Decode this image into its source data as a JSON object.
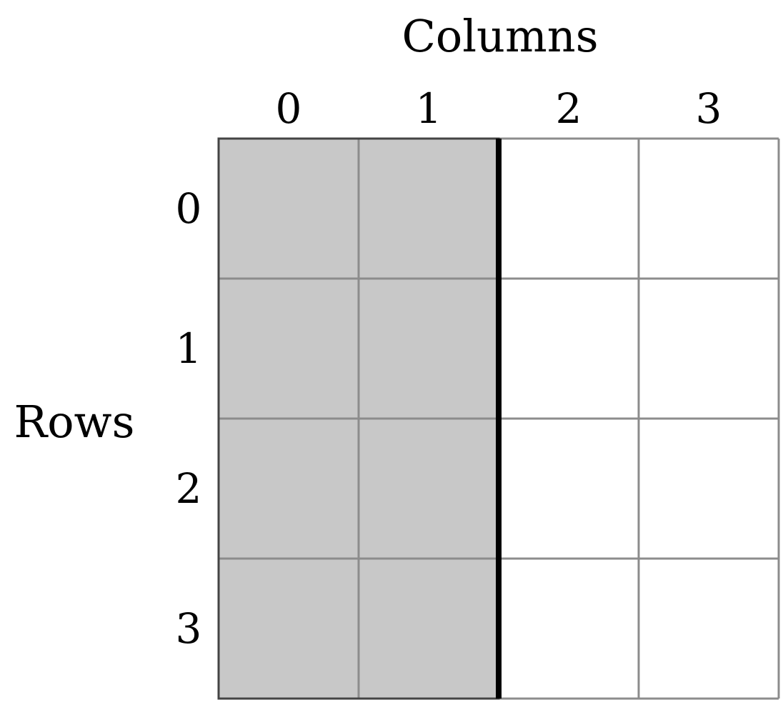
{
  "diagram": {
    "column_axis_label": "Columns",
    "row_axis_label": "Rows",
    "columns": [
      "0",
      "1",
      "2",
      "3"
    ],
    "rows": [
      "0",
      "1",
      "2",
      "3"
    ],
    "shaded_columns": [
      0,
      1
    ],
    "colors": {
      "shaded_fill": "#c8c8c8",
      "unshaded_fill": "#ffffff",
      "grid_line": "#8c8c8c",
      "boundary_line": "#000000",
      "text": "#000000"
    }
  }
}
